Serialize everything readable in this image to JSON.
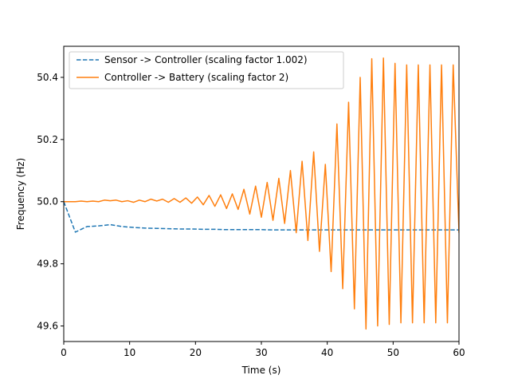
{
  "chart_data": {
    "type": "line",
    "xlabel": "Time (s)",
    "ylabel": "Frequency (Hz)",
    "xlim": [
      0,
      60
    ],
    "ylim": [
      49.55,
      50.5
    ],
    "x_ticks": [
      0,
      10,
      20,
      30,
      40,
      50,
      60
    ],
    "y_ticks": [
      49.6,
      49.8,
      50.0,
      50.2,
      50.4
    ],
    "x_tick_labels": [
      "0",
      "10",
      "20",
      "30",
      "40",
      "50",
      "60"
    ],
    "y_tick_labels": [
      "49.6",
      "49.8",
      "50.0",
      "50.2",
      "50.4"
    ],
    "grid": false,
    "legend_position": "top-left",
    "series": [
      {
        "name": "Sensor -> Controller (scaling factor 1.002)",
        "color": "#1f77b4",
        "dash": "dashed",
        "x": [
          0,
          1.76,
          3.53,
          5.29,
          7.06,
          8.82,
          10.59,
          12.35,
          14.12,
          15.88,
          17.65,
          19.41,
          21.18,
          22.94,
          24.71,
          26.47,
          28.24,
          30.0,
          31.76,
          33.53,
          35.29,
          37.06,
          38.82,
          40.59,
          42.35,
          44.12,
          45.88,
          47.65,
          49.41,
          51.18,
          52.94,
          54.71,
          56.47,
          58.24,
          60.0
        ],
        "y": [
          50.0,
          49.902,
          49.92,
          49.922,
          49.926,
          49.92,
          49.917,
          49.915,
          49.914,
          49.913,
          49.912,
          49.912,
          49.911,
          49.911,
          49.91,
          49.91,
          49.91,
          49.91,
          49.909,
          49.909,
          49.909,
          49.909,
          49.909,
          49.909,
          49.909,
          49.909,
          49.909,
          49.909,
          49.909,
          49.909,
          49.909,
          49.909,
          49.909,
          49.909,
          49.909
        ]
      },
      {
        "name": "Controller -> Battery (scaling factor 2)",
        "color": "#ff7f0e",
        "dash": "solid",
        "x": [
          0,
          0.88,
          1.76,
          2.65,
          3.53,
          4.41,
          5.29,
          6.18,
          7.06,
          7.94,
          8.82,
          9.71,
          10.59,
          11.47,
          12.35,
          13.24,
          14.12,
          15.0,
          15.88,
          16.76,
          17.65,
          18.53,
          19.41,
          20.29,
          21.18,
          22.06,
          22.94,
          23.82,
          24.71,
          25.59,
          26.47,
          27.35,
          28.24,
          29.12,
          30.0,
          30.88,
          31.76,
          32.65,
          33.53,
          34.41,
          35.29,
          36.18,
          37.06,
          37.94,
          38.82,
          39.71,
          40.59,
          41.47,
          42.35,
          43.24,
          44.12,
          45.0,
          45.88,
          46.76,
          47.65,
          48.53,
          49.41,
          50.29,
          51.18,
          52.06,
          52.94,
          53.82,
          54.71,
          55.59,
          56.47,
          57.35,
          58.24,
          59.12,
          60.0
        ],
        "y": [
          50.0,
          50.0,
          50.0,
          50.002,
          50.0,
          50.002,
          50.0,
          50.005,
          50.003,
          50.005,
          50.0,
          50.003,
          49.998,
          50.005,
          50.0,
          50.008,
          50.002,
          50.008,
          49.998,
          50.01,
          49.998,
          50.012,
          49.995,
          50.015,
          49.99,
          50.02,
          49.985,
          50.022,
          49.978,
          50.025,
          49.975,
          50.04,
          49.96,
          50.05,
          49.95,
          50.062,
          49.94,
          50.075,
          49.93,
          50.1,
          49.9,
          50.13,
          49.875,
          50.16,
          49.84,
          50.12,
          49.775,
          50.25,
          49.72,
          50.32,
          49.655,
          50.4,
          49.59,
          50.46,
          49.6,
          50.462,
          49.605,
          50.445,
          49.61,
          50.44,
          49.61,
          50.44,
          49.61,
          50.44,
          49.61,
          50.44,
          49.61,
          50.44,
          49.9
        ]
      }
    ]
  }
}
